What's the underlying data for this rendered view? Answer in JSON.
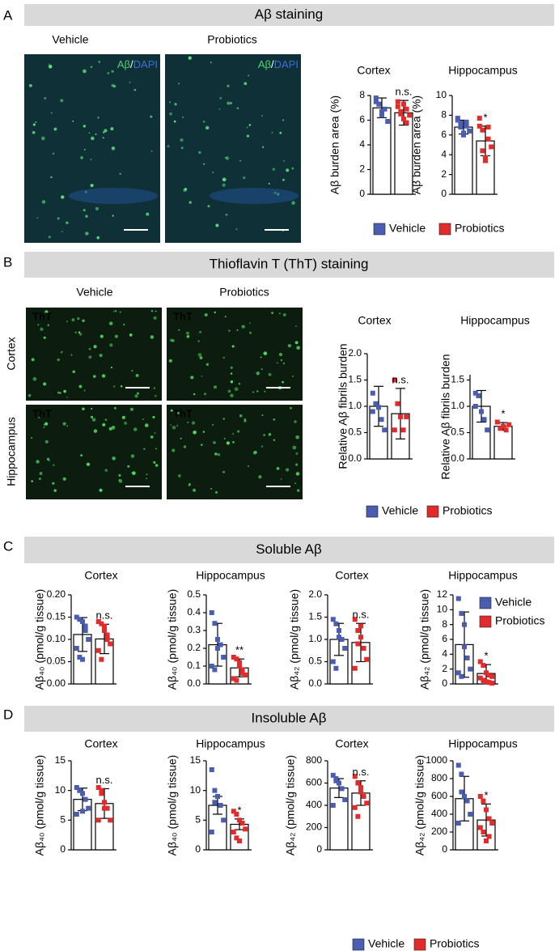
{
  "figure": {
    "panels": [
      {
        "letter": "A",
        "header": "Aβ staining",
        "columns": [
          "Vehicle",
          "Probiotics"
        ],
        "stain": [
          "Aβ",
          "/",
          "DAPI"
        ]
      },
      {
        "letter": "B",
        "header": "Thioflavin T (ThT) staining",
        "columns": [
          "Vehicle",
          "Probiotics"
        ],
        "rows": [
          "Cortex",
          "Hippocampus"
        ],
        "stain": "ThT"
      },
      {
        "letter": "C",
        "header": "Soluble Aβ"
      },
      {
        "letter": "D",
        "header": "Insoluble Aβ"
      }
    ],
    "legends": [
      {
        "items": [
          {
            "name": "Vehicle",
            "color": "#4a5db0"
          },
          {
            "name": "Probiotics",
            "color": "#e22b2b"
          }
        ]
      },
      {
        "items": [
          {
            "name": "Vehicle",
            "color": "#4a5db0"
          },
          {
            "name": "Probiotics",
            "color": "#e22b2b"
          }
        ]
      },
      {
        "items": [
          {
            "name": "Vehicle",
            "color": "#4a5db0"
          },
          {
            "name": "Probiotics",
            "color": "#e22b2b"
          }
        ]
      },
      {
        "items": [
          {
            "name": "Vehicle",
            "color": "#4a5db0"
          },
          {
            "name": "Probiotics",
            "color": "#e22b2b"
          }
        ]
      }
    ]
  },
  "chart_data": [
    {
      "type": "bar",
      "title": "Cortex",
      "ylabel": "Aβ burden area (%)",
      "ylim": [
        0,
        8
      ],
      "yticks": [
        0,
        2,
        4,
        6,
        8
      ],
      "annotation": "n.s.",
      "series": [
        {
          "color": "#4a5db0",
          "mean": 7.0,
          "sd": 0.8,
          "points": [
            7.8,
            7.3,
            6.4,
            6.9,
            5.9,
            7.5,
            7.3,
            6.7
          ]
        },
        {
          "color": "#e22b2b",
          "mean": 6.6,
          "sd": 1.0,
          "points": [
            7.1,
            6.5,
            7.3,
            5.8,
            6.4,
            7.5,
            6.7,
            6.1,
            6.9
          ]
        }
      ]
    },
    {
      "type": "bar",
      "title": "Hippocampus",
      "ylabel": "Aβ burden area (%)",
      "ylim": [
        0,
        10
      ],
      "yticks": [
        0,
        2,
        4,
        6,
        8,
        10
      ],
      "annotation": "*",
      "series": [
        {
          "color": "#4a5db0",
          "mean": 6.8,
          "sd": 0.7,
          "points": [
            7.7,
            7.2,
            6.2,
            6.9,
            6.4,
            7.5,
            6.8,
            6.0,
            7.3
          ]
        },
        {
          "color": "#e22b2b",
          "mean": 5.4,
          "sd": 1.5,
          "points": [
            6.9,
            6.5,
            3.4,
            5.6,
            4.8,
            7.7,
            4.4,
            3.7,
            6.8
          ]
        }
      ]
    },
    {
      "type": "bar",
      "title": "Cortex",
      "ylabel": "Relative Aβ fibrils burden",
      "ylim": [
        0,
        2
      ],
      "yticks": [
        {
          "value": 0,
          "label": "0.0"
        },
        0.5,
        {
          "value": 1,
          "label": "1.0"
        },
        1.5,
        {
          "value": 2,
          "label": "2.0"
        }
      ],
      "annotation": "n.s.",
      "series": [
        {
          "color": "#4a5db0",
          "mean": 1.0,
          "sd": 0.38,
          "points": [
            1.25,
            1.05,
            0.98,
            0.75,
            0.55,
            0.9
          ]
        },
        {
          "color": "#e22b2b",
          "mean": 0.86,
          "sd": 0.48,
          "points": [
            1.5,
            1.05,
            0.8,
            0.55,
            0.8,
            0.55
          ]
        }
      ]
    },
    {
      "type": "bar",
      "title": "Hippocampus",
      "ylabel": "Relative Aβ fibrils burden",
      "ylim": [
        0,
        1.6
      ],
      "yticks": [
        {
          "value": 0,
          "label": "0.0"
        },
        0.5,
        {
          "value": 1,
          "label": "1.0"
        },
        1.5
      ],
      "annotation": "*",
      "series": [
        {
          "color": "#4a5db0",
          "mean": 1.0,
          "sd": 0.3,
          "points": [
            1.25,
            1.2,
            0.9,
            0.75,
            0.55,
            1.0
          ]
        },
        {
          "color": "#e22b2b",
          "mean": 0.62,
          "sd": 0.07,
          "points": [
            0.7,
            0.58,
            0.62,
            0.55,
            0.65
          ]
        }
      ]
    },
    {
      "type": "bar",
      "title": "Cortex",
      "ylabel": "Aβ₄₀ (pmol/g tissue)",
      "ylim": [
        0,
        0.2
      ],
      "yticks": [
        {
          "value": 0,
          "label": "0.00"
        },
        0.05,
        {
          "value": 0.1,
          "label": "0.10"
        },
        0.15,
        {
          "value": 0.2,
          "label": "0.20"
        }
      ],
      "annotation": "n.s.",
      "series": [
        {
          "color": "#4a5db0",
          "mean": 0.111,
          "sd": 0.038,
          "points": [
            0.15,
            0.145,
            0.14,
            0.12,
            0.1,
            0.08,
            0.06,
            0.055,
            0.13
          ]
        },
        {
          "color": "#e22b2b",
          "mean": 0.101,
          "sd": 0.033,
          "points": [
            0.14,
            0.135,
            0.13,
            0.11,
            0.09,
            0.075,
            0.055,
            0.12,
            0.1
          ]
        }
      ]
    },
    {
      "type": "bar",
      "title": "Hippocampus",
      "ylabel": "Aβ₄₀ (pmol/g tissue)",
      "ylim": [
        0,
        0.5
      ],
      "yticks": [
        {
          "value": 0,
          "label": "0.0"
        },
        0.1,
        0.2,
        0.3,
        0.4,
        0.5
      ],
      "annotation": "**",
      "series": [
        {
          "color": "#4a5db0",
          "mean": 0.22,
          "sd": 0.12,
          "points": [
            0.4,
            0.34,
            0.25,
            0.22,
            0.15,
            0.1,
            0.08,
            0.2
          ]
        },
        {
          "color": "#e22b2b",
          "mean": 0.09,
          "sd": 0.05,
          "points": [
            0.15,
            0.14,
            0.12,
            0.08,
            0.05,
            0.03,
            0.02,
            0.1,
            0.06
          ]
        }
      ]
    },
    {
      "type": "bar",
      "title": "Cortex",
      "ylabel": "Aβ₄₂ (pmol/g tissue)",
      "ylim": [
        0,
        2
      ],
      "yticks": [
        {
          "value": 0,
          "label": "0.0"
        },
        0.5,
        {
          "value": 1,
          "label": "1.0"
        },
        1.5,
        {
          "value": 2,
          "label": "2.0"
        }
      ],
      "annotation": "n.s.",
      "series": [
        {
          "color": "#4a5db0",
          "mean": 1.0,
          "sd": 0.36,
          "points": [
            1.45,
            1.35,
            1.2,
            1.0,
            0.8,
            0.5,
            0.35,
            1.05
          ]
        },
        {
          "color": "#e22b2b",
          "mean": 0.93,
          "sd": 0.43,
          "points": [
            1.45,
            1.2,
            1.05,
            0.8,
            0.55,
            0.35,
            0.9,
            1.3
          ]
        }
      ]
    },
    {
      "type": "bar",
      "title": "Hippocampus",
      "ylabel": "Aβ₄₂ (pmol/g tissue)",
      "ylim": [
        0,
        12
      ],
      "yticks": [
        0,
        2,
        4,
        6,
        8,
        10,
        12
      ],
      "annotation": "*",
      "series": [
        {
          "color": "#4a5db0",
          "mean": 5.3,
          "sd": 4.4,
          "points": [
            11.5,
            9.5,
            5,
            3.5,
            2,
            1.5,
            1,
            8
          ]
        },
        {
          "color": "#e22b2b",
          "mean": 1.4,
          "sd": 1.2,
          "points": [
            3,
            2.5,
            1.5,
            1.2,
            1,
            0.8,
            0.5,
            0.3,
            0.2,
            0.1
          ]
        }
      ]
    },
    {
      "type": "bar",
      "title": "Cortex",
      "ylabel": "Aβ₄₀ (pmol/g tissue)",
      "ylim": [
        0,
        15
      ],
      "yticks": [
        0,
        5,
        10,
        15
      ],
      "annotation": "n.s.",
      "series": [
        {
          "color": "#4a5db0",
          "mean": 8.5,
          "sd": 1.9,
          "points": [
            10.5,
            10,
            9.5,
            8.5,
            7,
            6,
            10,
            6.5
          ]
        },
        {
          "color": "#e22b2b",
          "mean": 7.8,
          "sd": 2.5,
          "points": [
            10.5,
            10,
            8,
            7,
            5,
            5,
            9.5,
            7
          ]
        }
      ]
    },
    {
      "type": "bar",
      "title": "Hippocampus",
      "ylabel": "Aβ₄₀ (pmol/g tissue)",
      "ylim": [
        0,
        15
      ],
      "yticks": [
        0,
        5,
        10,
        15
      ],
      "annotation": "*",
      "series": [
        {
          "color": "#4a5db0",
          "mean": 7.5,
          "sd": 1.5,
          "points": [
            13.5,
            10,
            9,
            7.5,
            5,
            3,
            8
          ]
        },
        {
          "color": "#e22b2b",
          "mean": 4.3,
          "sd": 0.9,
          "points": [
            6.5,
            6,
            5,
            4.5,
            3.5,
            3,
            2,
            1.5
          ]
        }
      ]
    },
    {
      "type": "bar",
      "title": "Cortex",
      "ylabel": "Aβ₄₂ (pmol/g tissue)",
      "ylim": [
        0,
        800
      ],
      "yticks": [
        0,
        200,
        400,
        600,
        800
      ],
      "annotation": "n.s.",
      "series": [
        {
          "color": "#4a5db0",
          "mean": 555,
          "sd": 85,
          "points": [
            670,
            640,
            600,
            550,
            450,
            400,
            620
          ]
        },
        {
          "color": "#e22b2b",
          "mean": 510,
          "sd": 110,
          "points": [
            660,
            600,
            520,
            480,
            420,
            380,
            300,
            560
          ]
        }
      ]
    },
    {
      "type": "bar",
      "title": "Hippocampus",
      "ylabel": "Aβ₄₂ (pmol/g tissue)",
      "ylim": [
        0,
        1000
      ],
      "yticks": [
        0,
        200,
        400,
        600,
        800,
        1000
      ],
      "annotation": "*",
      "series": [
        {
          "color": "#4a5db0",
          "mean": 575,
          "sd": 250,
          "points": [
            950,
            850,
            600,
            550,
            400,
            300,
            650
          ]
        },
        {
          "color": "#e22b2b",
          "mean": 335,
          "sd": 180,
          "points": [
            600,
            550,
            450,
            350,
            300,
            250,
            200,
            100,
            150
          ]
        }
      ]
    }
  ]
}
